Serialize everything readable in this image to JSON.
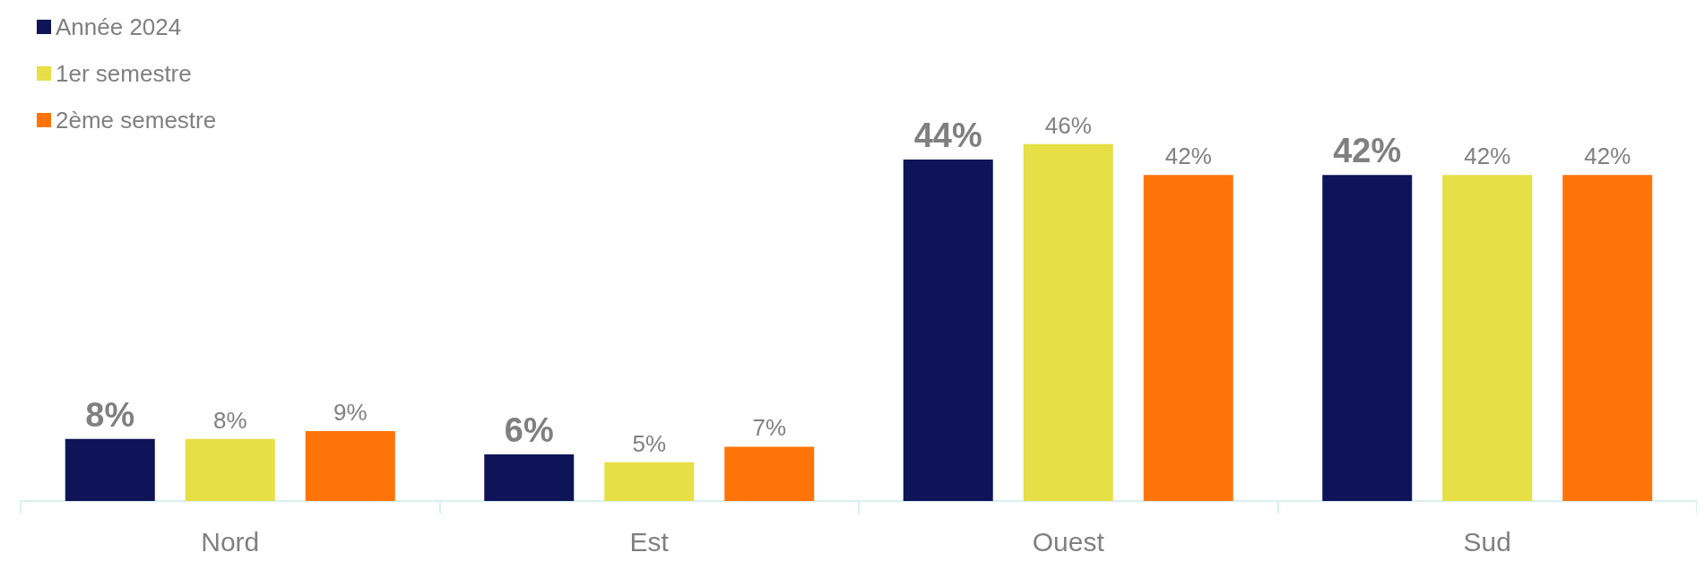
{
  "chart_data": {
    "type": "bar",
    "categories": [
      "Nord",
      "Est",
      "Ouest",
      "Sud"
    ],
    "series": [
      {
        "name": "Année 2024",
        "color": "#0f1459",
        "values": [
          8,
          6,
          44,
          42
        ],
        "value_labels": [
          "8%",
          "6%",
          "44%",
          "42%"
        ]
      },
      {
        "name": "1er semestre",
        "color": "#e6df45",
        "values": [
          8,
          5,
          46,
          42
        ],
        "value_labels": [
          "8%",
          "5%",
          "46%",
          "42%"
        ]
      },
      {
        "name": "2ème semestre",
        "color": "#ff7408",
        "values": [
          9,
          7,
          42,
          42
        ],
        "value_labels": [
          "9%",
          "7%",
          "42%",
          "42%"
        ]
      }
    ],
    "legend": "top left"
  }
}
